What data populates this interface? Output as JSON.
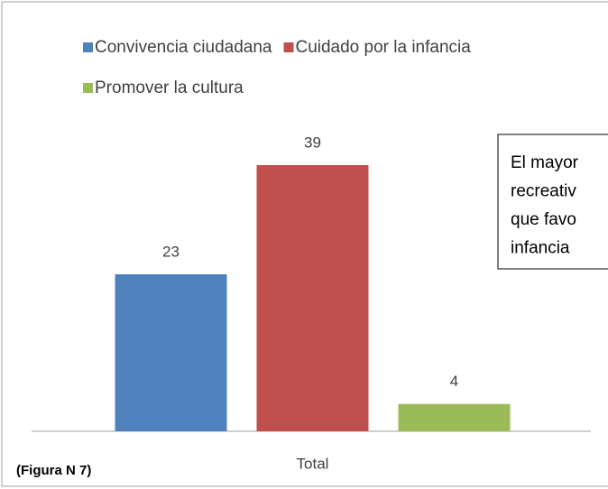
{
  "chart_data": {
    "type": "bar",
    "categories": [
      "Total"
    ],
    "series": [
      {
        "name": "Convivencia ciudadana",
        "color": "#4f81bd",
        "values": [
          23
        ]
      },
      {
        "name": "Cuidado por la infancia",
        "color": "#c0504d",
        "values": [
          39
        ]
      },
      {
        "name": "Promover la cultura",
        "color": "#9bbb59",
        "values": [
          4
        ]
      }
    ],
    "annotation": [
      "El mayor",
      "recreativ",
      "que favo",
      "infancia"
    ],
    "figure_label": "(Figura N 7)"
  }
}
